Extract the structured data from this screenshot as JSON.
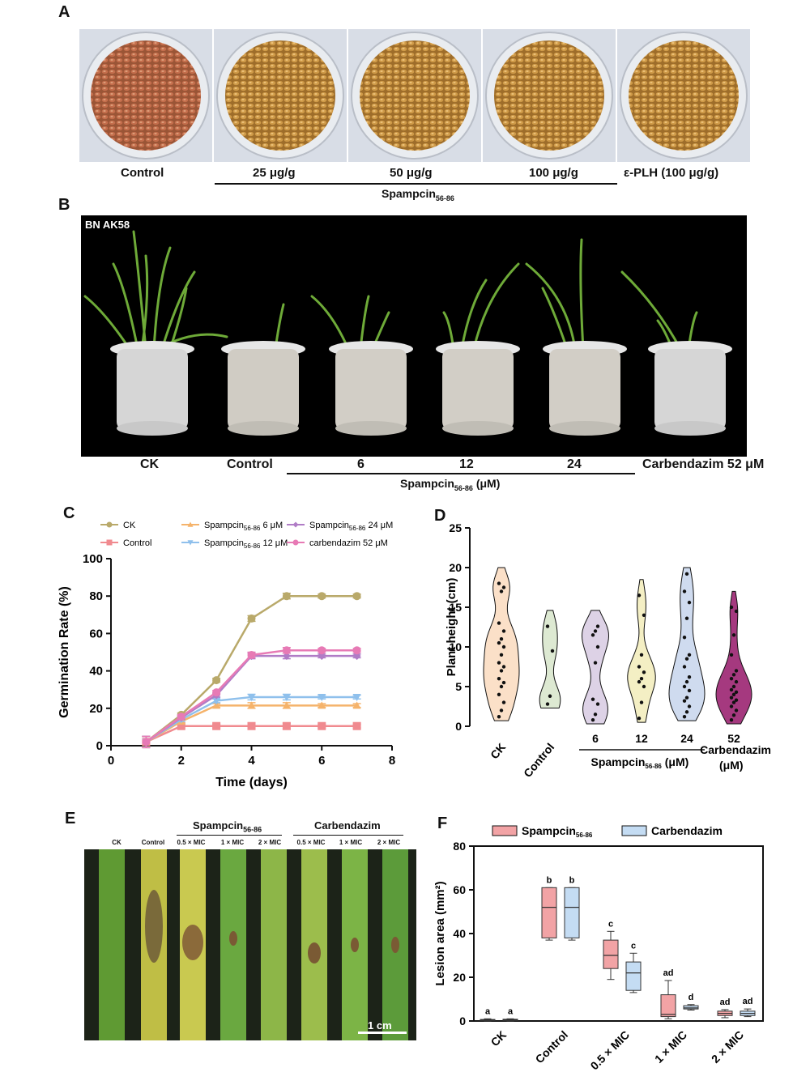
{
  "panels": {
    "A": "A",
    "B": "B",
    "C": "C",
    "D": "D",
    "E": "E",
    "F": "F"
  },
  "panel_a": {
    "labels": [
      "Control",
      "25 μg/g",
      "50 μg/g",
      "100 μg/g",
      "ε-PLH (100 μg/g)"
    ],
    "group": "Spampcin",
    "group_sub": "56-86"
  },
  "panel_b": {
    "photo_label": "BN AK58",
    "labels": [
      "CK",
      "Control",
      "6",
      "12",
      "24",
      "Carbendazim 52 μM"
    ],
    "group": "Spampcin",
    "group_sub": "56-86",
    "group_unit": " (μM)"
  },
  "panel_e": {
    "labels": [
      "CK",
      "Control",
      "0.5 × MIC",
      "1 × MIC",
      "2 × MIC",
      "0.5 × MIC",
      "1 × MIC",
      "2 × MIC"
    ],
    "group1": "Spampcin",
    "group1_sub": "56-86",
    "group2": "Carbendazim",
    "scale_bar": "1 cm"
  },
  "chart_data": [
    {
      "panel": "C",
      "type": "line",
      "xlabel": "Time (days)",
      "ylabel": "Germination Rate (%)",
      "xlim": [
        0,
        8
      ],
      "ylim": [
        0,
        100
      ],
      "xticks": [
        0,
        2,
        4,
        6,
        8
      ],
      "yticks": [
        0,
        20,
        40,
        60,
        80,
        100
      ],
      "legend_placement": "top",
      "x": [
        1,
        2,
        3,
        4,
        5,
        6,
        7
      ],
      "series": [
        {
          "name": "CK",
          "color": "#b9a96a",
          "marker": "circle",
          "values": [
            2,
            16.5,
            35,
            68,
            80,
            80,
            80
          ]
        },
        {
          "name": "Control",
          "color": "#f08a8f",
          "marker": "square",
          "values": [
            2,
            10.5,
            10.5,
            10.5,
            10.5,
            10.5,
            10.5
          ]
        },
        {
          "name": "Spampcin",
          "sub": "56-86",
          "unit": " 6 μM",
          "color": "#f5b36b",
          "marker": "triangle",
          "values": [
            2,
            13,
            21.5,
            21.5,
            21.5,
            21.5,
            21.5
          ]
        },
        {
          "name": "Spampcin",
          "sub": "56-86",
          "unit": " 12 μM",
          "color": "#8fc0ec",
          "marker": "triangle-down",
          "values": [
            2,
            14,
            24,
            26,
            26,
            26,
            26
          ]
        },
        {
          "name": "Spampcin",
          "sub": "56-86",
          "unit": " 24 μM",
          "color": "#b07cc6",
          "marker": "diamond",
          "values": [
            2,
            15,
            27,
            48,
            48,
            48,
            48
          ]
        },
        {
          "name": "carbendazim 52 μM",
          "color": "#e77ab5",
          "marker": "circle",
          "values": [
            2,
            15.5,
            28.5,
            48.5,
            51,
            51,
            51
          ]
        }
      ],
      "errors": [
        3,
        1,
        1,
        1.5,
        1.5,
        1,
        1
      ]
    },
    {
      "panel": "D",
      "type": "violin",
      "ylabel": "Plant height (cm)",
      "ylim": [
        0,
        25
      ],
      "yticks": [
        0,
        5,
        10,
        15,
        20,
        25
      ],
      "categories": [
        "CK",
        "Control",
        "6",
        "12",
        "24",
        "52"
      ],
      "group_label": "Spampcin",
      "group_sub": "56-86",
      "group_unit": " (μM)",
      "extra_label": "Carbendazim",
      "extra_unit": "(μM)",
      "groups": [
        {
          "cat": "CK",
          "fill": "#fbe0c8",
          "points": [
            1.2,
            2,
            3,
            4,
            5,
            5.5,
            6,
            7,
            7.5,
            8,
            9,
            10,
            10.5,
            11,
            12,
            13,
            17,
            17.5,
            18
          ]
        },
        {
          "cat": "Control",
          "fill": "#dde9d2",
          "points": [
            2.8,
            3.8,
            9.5,
            12.6
          ]
        },
        {
          "cat": "6",
          "fill": "#ddd2e6",
          "points": [
            0.8,
            1.5,
            2.8,
            3.4,
            8,
            10,
            11.5,
            12,
            12.6
          ]
        },
        {
          "cat": "12",
          "fill": "#f4efc4",
          "points": [
            1,
            3,
            5,
            5.6,
            6,
            6.8,
            7.5,
            9,
            14,
            16.5
          ]
        },
        {
          "cat": "24",
          "fill": "#cfdbef",
          "points": [
            1.2,
            1.8,
            2.5,
            3.2,
            3.6,
            4.5,
            5,
            5.6,
            6.2,
            7.5,
            8.5,
            9,
            11.2,
            13.6,
            15.6,
            17,
            19.2
          ]
        },
        {
          "cat": "52",
          "fill": "#a5397f",
          "points": [
            0.8,
            1.4,
            2,
            2.5,
            3,
            3.3,
            3.6,
            4,
            4.3,
            4.6,
            5,
            5.6,
            6,
            6.5,
            7,
            9,
            11.5,
            14.5,
            15
          ]
        }
      ]
    },
    {
      "panel": "F",
      "type": "box",
      "ylabel": "Lesion area (mm²)",
      "ylim": [
        0,
        80
      ],
      "yticks": [
        0,
        20,
        40,
        60,
        80
      ],
      "categories": [
        "CK",
        "Control",
        "0.5 × MIC",
        "1 × MIC",
        "2 × MIC"
      ],
      "legend_placement": "top",
      "series": [
        {
          "name": "Spampcin",
          "sub": "56-86",
          "color": "#f2a3a5",
          "boxes": [
            [
              0,
              0.2,
              0.4,
              0.7,
              1
            ],
            [
              37,
              38,
              52,
              61,
              61
            ],
            [
              19,
              24,
              30,
              37,
              41
            ],
            [
              1,
              2,
              3,
              12,
              18.5
            ],
            [
              1.5,
              2.5,
              3.5,
              4.5,
              5.2
            ]
          ],
          "letters": [
            "a",
            "b",
            "c",
            "ad",
            "ad"
          ]
        },
        {
          "name": "Carbendazim",
          "color": "#c4dcf3",
          "boxes": [
            [
              0,
              0.2,
              0.5,
              0.8,
              1
            ],
            [
              37,
              38,
              52,
              61,
              61
            ],
            [
              13,
              14,
              22,
              27,
              31
            ],
            [
              5,
              5.5,
              6,
              7,
              7.5
            ],
            [
              2,
              2.5,
              3.5,
              4.5,
              5.5
            ]
          ],
          "letters": [
            "a",
            "b",
            "c",
            "d",
            "ad"
          ]
        }
      ]
    }
  ]
}
